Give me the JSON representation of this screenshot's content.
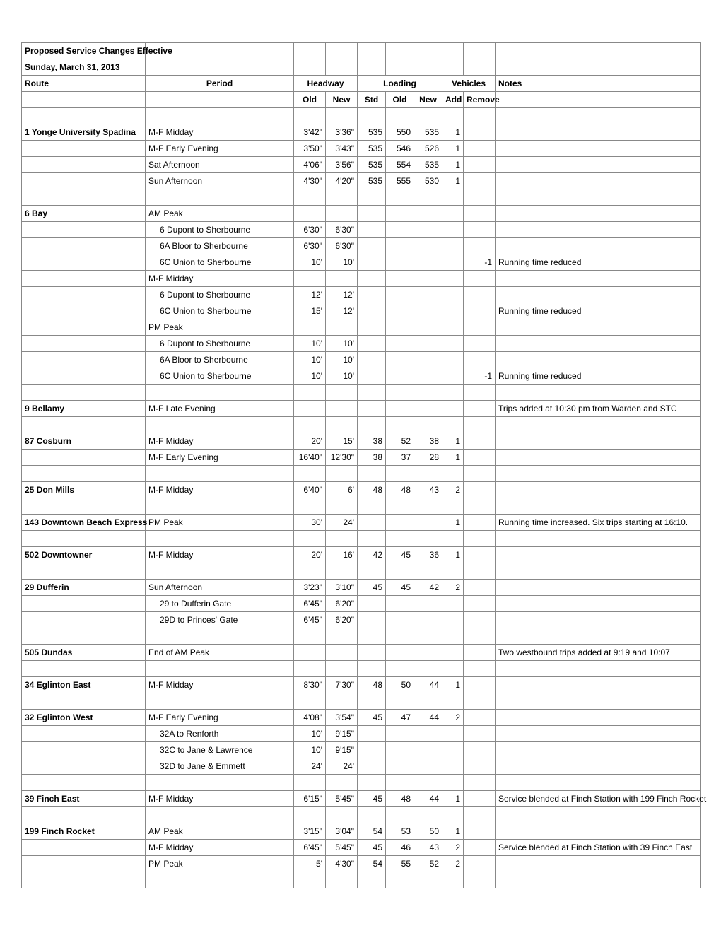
{
  "title_line1": "Proposed Service Changes Effective",
  "title_line2": "Sunday, March 31, 2013",
  "headers": {
    "route": "Route",
    "period": "Period",
    "headway": "Headway",
    "loading": "Loading",
    "vehicles": "Vehicles",
    "notes": "Notes",
    "old": "Old",
    "new": "New",
    "std": "Std",
    "add": "Add",
    "remove": "Remove"
  },
  "rows": [
    {
      "route": "1 Yonge University Spadina",
      "period": "M-F Midday",
      "old": "3'42\"",
      "new": "3'36\"",
      "std": "535",
      "lold": "550",
      "lnew": "535",
      "add": "1",
      "rem": "",
      "notes": ""
    },
    {
      "route": "",
      "period": "M-F Early Evening",
      "old": "3'50\"",
      "new": "3'43\"",
      "std": "535",
      "lold": "546",
      "lnew": "526",
      "add": "1",
      "rem": "",
      "notes": ""
    },
    {
      "route": "",
      "period": "Sat Afternoon",
      "old": "4'06\"",
      "new": "3'56\"",
      "std": "535",
      "lold": "554",
      "lnew": "535",
      "add": "1",
      "rem": "",
      "notes": ""
    },
    {
      "route": "",
      "period": "Sun Afternoon",
      "old": "4'30\"",
      "new": "4'20\"",
      "std": "535",
      "lold": "555",
      "lnew": "530",
      "add": "1",
      "rem": "",
      "notes": ""
    },
    {
      "blank": true
    },
    {
      "route": "6 Bay",
      "period": "AM Peak",
      "old": "",
      "new": "",
      "std": "",
      "lold": "",
      "lnew": "",
      "add": "",
      "rem": "",
      "notes": ""
    },
    {
      "route": "",
      "period": "6 Dupont to Sherbourne",
      "indent": true,
      "old": "6'30\"",
      "new": "6'30\"",
      "std": "",
      "lold": "",
      "lnew": "",
      "add": "",
      "rem": "",
      "notes": ""
    },
    {
      "route": "",
      "period": "6A Bloor to Sherbourne",
      "indent": true,
      "old": "6'30\"",
      "new": "6'30\"",
      "std": "",
      "lold": "",
      "lnew": "",
      "add": "",
      "rem": "",
      "notes": ""
    },
    {
      "route": "",
      "period": "6C Union to Sherbourne",
      "indent": true,
      "old": "10'",
      "new": "10'",
      "std": "",
      "lold": "",
      "lnew": "",
      "add": "",
      "rem": "-1",
      "notes": "Running time reduced"
    },
    {
      "route": "",
      "period": "M-F Midday",
      "old": "",
      "new": "",
      "std": "",
      "lold": "",
      "lnew": "",
      "add": "",
      "rem": "",
      "notes": ""
    },
    {
      "route": "",
      "period": "6 Dupont to Sherbourne",
      "indent": true,
      "old": "12'",
      "new": "12'",
      "std": "",
      "lold": "",
      "lnew": "",
      "add": "",
      "rem": "",
      "notes": ""
    },
    {
      "route": "",
      "period": "6C Union to Sherbourne",
      "indent": true,
      "old": "15'",
      "new": "12'",
      "std": "",
      "lold": "",
      "lnew": "",
      "add": "",
      "rem": "",
      "notes": "Running time reduced"
    },
    {
      "route": "",
      "period": "PM Peak",
      "old": "",
      "new": "",
      "std": "",
      "lold": "",
      "lnew": "",
      "add": "",
      "rem": "",
      "notes": ""
    },
    {
      "route": "",
      "period": "6 Dupont to Sherbourne",
      "indent": true,
      "old": "10'",
      "new": "10'",
      "std": "",
      "lold": "",
      "lnew": "",
      "add": "",
      "rem": "",
      "notes": ""
    },
    {
      "route": "",
      "period": "6A Bloor to Sherbourne",
      "indent": true,
      "old": "10'",
      "new": "10'",
      "std": "",
      "lold": "",
      "lnew": "",
      "add": "",
      "rem": "",
      "notes": ""
    },
    {
      "route": "",
      "period": "6C Union to Sherbourne",
      "indent": true,
      "old": "10'",
      "new": "10'",
      "std": "",
      "lold": "",
      "lnew": "",
      "add": "",
      "rem": "-1",
      "notes": "Running time reduced"
    },
    {
      "blank": true
    },
    {
      "route": "9 Bellamy",
      "period": "M-F Late Evening",
      "old": "",
      "new": "",
      "std": "",
      "lold": "",
      "lnew": "",
      "add": "",
      "rem": "",
      "notes": "Trips added at 10:30 pm from Warden and STC"
    },
    {
      "blank": true
    },
    {
      "route": "87 Cosburn",
      "period": "M-F Midday",
      "old": "20'",
      "new": "15'",
      "std": "38",
      "lold": "52",
      "lnew": "38",
      "add": "1",
      "rem": "",
      "notes": ""
    },
    {
      "route": "",
      "period": "M-F Early Evening",
      "old": "16'40\"",
      "new": "12'30\"",
      "std": "38",
      "lold": "37",
      "lnew": "28",
      "add": "1",
      "rem": "",
      "notes": ""
    },
    {
      "blank": true
    },
    {
      "route": "25 Don Mills",
      "period": "M-F Midday",
      "old": "6'40\"",
      "new": "6'",
      "std": "48",
      "lold": "48",
      "lnew": "43",
      "add": "2",
      "rem": "",
      "notes": ""
    },
    {
      "blank": true
    },
    {
      "route": "143 Downtown Beach Express",
      "period": "PM Peak",
      "old": "30'",
      "new": "24'",
      "std": "",
      "lold": "",
      "lnew": "",
      "add": "1",
      "rem": "",
      "notes": "Running time increased.  Six trips starting at 16:10."
    },
    {
      "blank": true
    },
    {
      "route": "502 Downtowner",
      "period": "M-F Midday",
      "old": "20'",
      "new": "16'",
      "std": "42",
      "lold": "45",
      "lnew": "36",
      "add": "1",
      "rem": "",
      "notes": ""
    },
    {
      "blank": true
    },
    {
      "route": "29 Dufferin",
      "period": "Sun Afternoon",
      "old": "3'23\"",
      "new": "3'10\"",
      "std": "45",
      "lold": "45",
      "lnew": "42",
      "add": "2",
      "rem": "",
      "notes": ""
    },
    {
      "route": "",
      "period": "29 to Dufferin Gate",
      "indent": true,
      "old": "6'45\"",
      "new": "6'20\"",
      "std": "",
      "lold": "",
      "lnew": "",
      "add": "",
      "rem": "",
      "notes": ""
    },
    {
      "route": "",
      "period": "29D to Princes' Gate",
      "indent": true,
      "old": "6'45\"",
      "new": "6'20\"",
      "std": "",
      "lold": "",
      "lnew": "",
      "add": "",
      "rem": "",
      "notes": ""
    },
    {
      "blank": true
    },
    {
      "route": "505 Dundas",
      "period": "End of AM Peak",
      "old": "",
      "new": "",
      "std": "",
      "lold": "",
      "lnew": "",
      "add": "",
      "rem": "",
      "notes": "Two westbound trips added at 9:19 and 10:07"
    },
    {
      "blank": true
    },
    {
      "route": "34 Eglinton East",
      "period": "M-F Midday",
      "old": "8'30\"",
      "new": "7'30\"",
      "std": "48",
      "lold": "50",
      "lnew": "44",
      "add": "1",
      "rem": "",
      "notes": ""
    },
    {
      "blank": true
    },
    {
      "route": "32 Eglinton West",
      "period": "M-F Early Evening",
      "old": "4'08\"",
      "new": "3'54\"",
      "std": "45",
      "lold": "47",
      "lnew": "44",
      "add": "2",
      "rem": "",
      "notes": ""
    },
    {
      "route": "",
      "period": "32A to Renforth",
      "indent": true,
      "old": "10'",
      "new": "9'15\"",
      "std": "",
      "lold": "",
      "lnew": "",
      "add": "",
      "rem": "",
      "notes": ""
    },
    {
      "route": "",
      "period": "32C to Jane & Lawrence",
      "indent": true,
      "old": "10'",
      "new": "9'15\"",
      "std": "",
      "lold": "",
      "lnew": "",
      "add": "",
      "rem": "",
      "notes": ""
    },
    {
      "route": "",
      "period": "32D to Jane & Emmett",
      "indent": true,
      "old": "24'",
      "new": "24'",
      "std": "",
      "lold": "",
      "lnew": "",
      "add": "",
      "rem": "",
      "notes": ""
    },
    {
      "blank": true
    },
    {
      "route": "39 Finch East",
      "period": "M-F Midday",
      "old": "6'15\"",
      "new": "5'45\"",
      "std": "45",
      "lold": "48",
      "lnew": "44",
      "add": "1",
      "rem": "",
      "notes": "Service blended at Finch Station with 199 Finch Rocket"
    },
    {
      "blank": true
    },
    {
      "route": "199 Finch Rocket",
      "period": "AM Peak",
      "old": "3'15\"",
      "new": "3'04\"",
      "std": "54",
      "lold": "53",
      "lnew": "50",
      "add": "1",
      "rem": "",
      "notes": ""
    },
    {
      "route": "",
      "period": "M-F Midday",
      "old": "6'45\"",
      "new": "5'45\"",
      "std": "45",
      "lold": "46",
      "lnew": "43",
      "add": "2",
      "rem": "",
      "notes": "Service blended at Finch Station with 39 Finch East"
    },
    {
      "route": "",
      "period": "PM Peak",
      "old": "5'",
      "new": "4'30\"",
      "std": "54",
      "lold": "55",
      "lnew": "52",
      "add": "2",
      "rem": "",
      "notes": ""
    },
    {
      "blank": true
    }
  ]
}
